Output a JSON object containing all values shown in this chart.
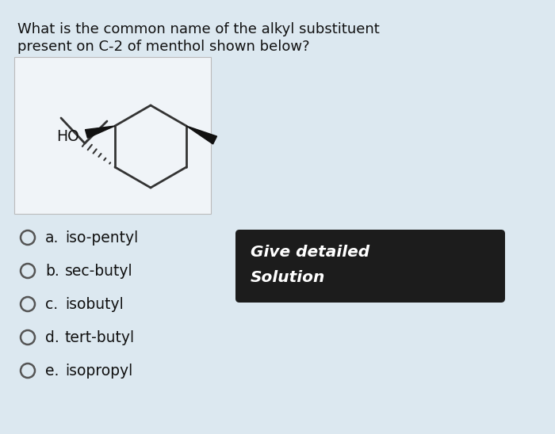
{
  "background_color": "#c8d5e0",
  "card_color": "#dce8f0",
  "question_text_line1": "What is the common name of the alkyl substituent",
  "question_text_line2": "present on C-2 of menthol shown below?",
  "options": [
    {
      "label": "a.",
      "text": "iso-pentyl"
    },
    {
      "label": "b.",
      "text": "sec-butyl"
    },
    {
      "label": "c.",
      "text": "isobutyl"
    },
    {
      "label": "d.",
      "text": "tert-butyl"
    },
    {
      "label": "e.",
      "text": "isopropyl"
    }
  ],
  "button_color": "#1c1c1c",
  "button_text_line1": "Give detailed",
  "button_text_line2": "Solution",
  "button_text_color": "#ffffff",
  "molecule_box_color": "#f0f4f8",
  "question_fontsize": 13.0,
  "option_fontsize": 13.5,
  "button_fontsize": 14.5
}
